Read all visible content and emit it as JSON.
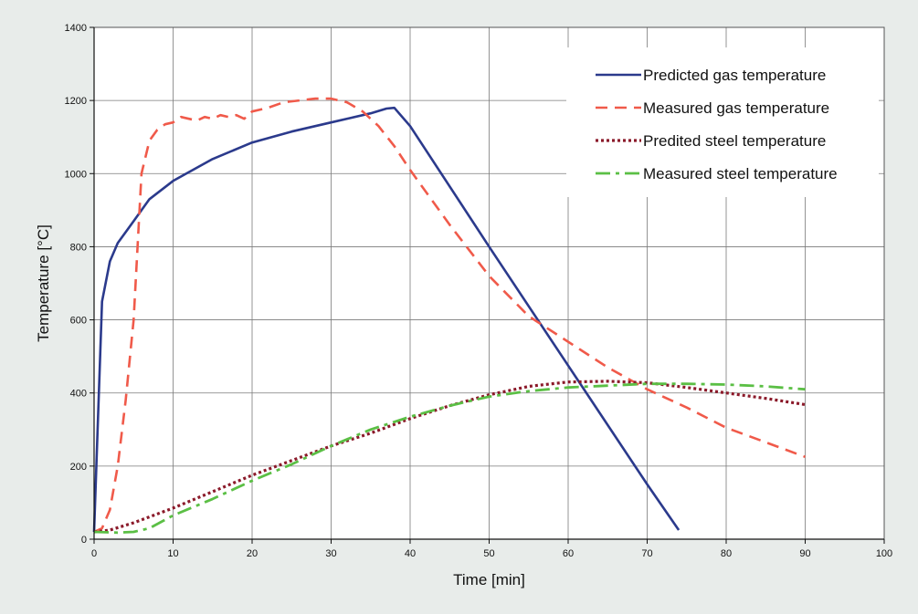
{
  "chart_data": {
    "type": "line",
    "title": "",
    "xlabel": "Time [min]",
    "ylabel": "Temperature [°C]",
    "xlim": [
      0,
      100
    ],
    "ylim": [
      0,
      1400
    ],
    "x_ticks": [
      "0",
      "10",
      "20",
      "30",
      "40",
      "50",
      "60",
      "70",
      "80",
      "90",
      "100"
    ],
    "y_ticks": [
      "0",
      "200",
      "400",
      "600",
      "800",
      "1000",
      "1200",
      "1400"
    ],
    "grid": true,
    "legend_position": "top-right",
    "background_color": "#e8ecea",
    "plot_background_color": "#ffffff",
    "series": [
      {
        "name": "Predicted gas temperature",
        "color": "#2b3a8c",
        "style": "solid",
        "x": [
          0,
          1,
          2,
          3,
          5,
          7,
          10,
          15,
          20,
          25,
          30,
          35,
          37,
          38,
          40,
          50,
          60,
          70,
          74
        ],
        "y": [
          20,
          650,
          760,
          810,
          870,
          930,
          980,
          1040,
          1085,
          1115,
          1140,
          1165,
          1178,
          1180,
          1130,
          800,
          475,
          150,
          25
        ]
      },
      {
        "name": "Measured gas temperature",
        "color": "#f05a4a",
        "style": "dashed",
        "x": [
          0,
          1,
          2,
          3,
          4,
          5,
          5.5,
          6,
          7,
          8,
          9,
          10,
          11,
          12,
          13,
          14,
          15,
          16,
          17,
          18,
          19,
          20,
          22,
          24,
          26,
          28,
          30,
          32,
          34,
          36,
          38,
          40,
          45,
          50,
          55,
          60,
          65,
          70,
          75,
          80,
          85,
          90
        ],
        "y": [
          20,
          30,
          80,
          200,
          380,
          600,
          800,
          1000,
          1090,
          1120,
          1135,
          1140,
          1155,
          1150,
          1145,
          1155,
          1150,
          1160,
          1155,
          1160,
          1150,
          1170,
          1180,
          1195,
          1200,
          1205,
          1205,
          1195,
          1170,
          1130,
          1075,
          1010,
          860,
          720,
          610,
          540,
          470,
          410,
          360,
          305,
          265,
          225
        ]
      },
      {
        "name": "Predited steel temperature",
        "color": "#8b1a2a",
        "style": "dotted",
        "x": [
          0,
          2,
          5,
          10,
          15,
          20,
          25,
          30,
          35,
          40,
          45,
          50,
          55,
          60,
          65,
          70,
          75,
          80,
          85,
          90
        ],
        "y": [
          20,
          25,
          45,
          85,
          130,
          175,
          215,
          255,
          290,
          330,
          365,
          395,
          418,
          430,
          432,
          428,
          415,
          400,
          385,
          368
        ]
      },
      {
        "name": "Measured steel temperature",
        "color": "#5bbf45",
        "style": "dashdot",
        "x": [
          0,
          3,
          5,
          7,
          10,
          15,
          20,
          25,
          30,
          35,
          40,
          45,
          50,
          55,
          60,
          65,
          70,
          75,
          80,
          85,
          90
        ],
        "y": [
          20,
          18,
          20,
          30,
          65,
          110,
          160,
          205,
          255,
          300,
          335,
          365,
          390,
          405,
          415,
          420,
          425,
          425,
          423,
          418,
          410
        ]
      }
    ]
  }
}
